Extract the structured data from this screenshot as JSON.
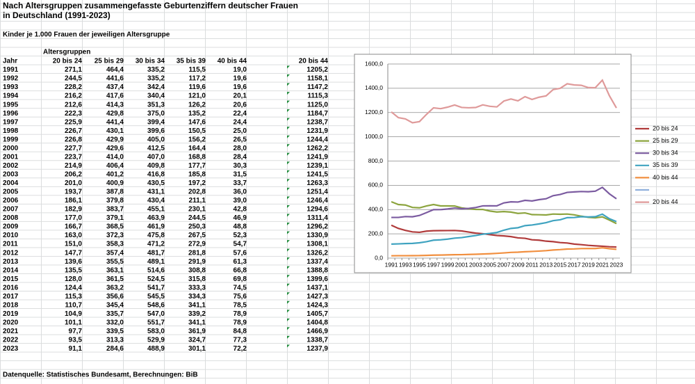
{
  "sheet": {
    "title_line1": "Nach Altersgruppen zusammengefasste Geburtenziffern deutscher Frauen",
    "title_line2": "in Deutschland (1991-2023)",
    "subtitle": "Kinder je 1.000 Frauen der jeweiligen Altersgruppe",
    "group_header": "Altersgruppen",
    "source": "Datenquelle: Statistisches Bundesamt, Berechnungen: BiB",
    "table": {
      "header": [
        "Jahr",
        "20 bis 24",
        "25 bis 29",
        "30 bis 34",
        "35 bis 39",
        "40 bis 44",
        "20 bis 44"
      ],
      "rows": [
        [
          "1991",
          "271,1",
          "464,4",
          "335,2",
          "115,5",
          "19,0",
          "1205,2"
        ],
        [
          "1992",
          "244,5",
          "441,6",
          "335,2",
          "117,2",
          "19,6",
          "1158,1"
        ],
        [
          "1993",
          "228,2",
          "437,4",
          "342,4",
          "119,6",
          "19,6",
          "1147,2"
        ],
        [
          "1994",
          "216,2",
          "417,6",
          "340,4",
          "121,0",
          "20,1",
          "1115,3"
        ],
        [
          "1995",
          "212,6",
          "414,3",
          "351,3",
          "126,2",
          "20,6",
          "1125,0"
        ],
        [
          "1996",
          "222,3",
          "429,8",
          "375,0",
          "135,2",
          "22,4",
          "1184,7"
        ],
        [
          "1997",
          "225,9",
          "441,4",
          "399,4",
          "147,6",
          "24,4",
          "1238,7"
        ],
        [
          "1998",
          "226,7",
          "430,1",
          "399,6",
          "150,5",
          "25,0",
          "1231,9"
        ],
        [
          "1999",
          "226,8",
          "429,9",
          "405,0",
          "156,2",
          "26,5",
          "1244,4"
        ],
        [
          "2000",
          "227,7",
          "429,6",
          "412,5",
          "164,4",
          "28,0",
          "1262,2"
        ],
        [
          "2001",
          "223,7",
          "414,0",
          "407,0",
          "168,8",
          "28,4",
          "1241,9"
        ],
        [
          "2002",
          "214,9",
          "406,4",
          "409,8",
          "177,7",
          "30,3",
          "1239,1"
        ],
        [
          "2003",
          "206,2",
          "401,2",
          "416,8",
          "185,8",
          "31,5",
          "1241,5"
        ],
        [
          "2004",
          "201,0",
          "400,9",
          "430,5",
          "197,2",
          "33,7",
          "1263,3"
        ],
        [
          "2005",
          "193,7",
          "387,8",
          "431,1",
          "202,8",
          "36,0",
          "1251,4"
        ],
        [
          "2006",
          "186,1",
          "379,8",
          "430,4",
          "211,1",
          "39,0",
          "1246,4"
        ],
        [
          "2007",
          "182,9",
          "383,7",
          "455,1",
          "230,1",
          "42,8",
          "1294,6"
        ],
        [
          "2008",
          "177,0",
          "379,1",
          "463,9",
          "244,5",
          "46,9",
          "1311,4"
        ],
        [
          "2009",
          "166,7",
          "368,5",
          "461,9",
          "250,3",
          "48,8",
          "1296,2"
        ],
        [
          "2010",
          "163,0",
          "372,3",
          "475,8",
          "267,5",
          "52,3",
          "1330,9"
        ],
        [
          "2011",
          "151,0",
          "358,3",
          "471,2",
          "272,9",
          "54,7",
          "1308,1"
        ],
        [
          "2012",
          "147,7",
          "357,4",
          "481,7",
          "281,8",
          "57,6",
          "1326,2"
        ],
        [
          "2013",
          "139,6",
          "355,5",
          "489,1",
          "291,9",
          "61,3",
          "1337,4"
        ],
        [
          "2014",
          "135,5",
          "363,1",
          "514,6",
          "308,8",
          "66,8",
          "1388,8"
        ],
        [
          "2015",
          "128,0",
          "361,5",
          "524,5",
          "315,8",
          "69,8",
          "1399,6"
        ],
        [
          "2016",
          "124,4",
          "363,2",
          "541,7",
          "333,3",
          "74,5",
          "1437,1"
        ],
        [
          "2017",
          "115,3",
          "356,6",
          "545,5",
          "334,3",
          "75,6",
          "1427,3"
        ],
        [
          "2018",
          "110,7",
          "345,4",
          "548,6",
          "341,1",
          "78,5",
          "1424,3"
        ],
        [
          "2019",
          "104,9",
          "335,7",
          "547,0",
          "339,2",
          "78,9",
          "1405,7"
        ],
        [
          "2020",
          "101,1",
          "332,0",
          "551,7",
          "341,1",
          "78,9",
          "1404,8"
        ],
        [
          "2021",
          "97,7",
          "339,5",
          "583,0",
          "361,9",
          "84,8",
          "1466,9"
        ],
        [
          "2022",
          "93,5",
          "313,3",
          "529,9",
          "324,7",
          "77,3",
          "1338,7"
        ],
        [
          "2023",
          "91,1",
          "284,6",
          "488,9",
          "301,1",
          "72,2",
          "1237,9"
        ]
      ]
    }
  },
  "chart_data": {
    "type": "line",
    "categories": [
      "1991",
      null,
      "1993",
      null,
      "1995",
      null,
      "1997",
      null,
      "1999",
      null,
      "2001",
      null,
      "2003",
      null,
      "2005",
      null,
      "2007",
      null,
      "2009",
      null,
      "2011",
      null,
      "2013",
      null,
      "2015",
      null,
      "2017",
      null,
      "2019",
      null,
      "2021",
      null,
      "2023"
    ],
    "ylim": [
      0,
      1600
    ],
    "yticks": [
      {
        "value": 0,
        "label": "0,0"
      },
      {
        "value": 200,
        "label": "200,0"
      },
      {
        "value": 400,
        "label": "400,0"
      },
      {
        "value": 600,
        "label": "600,0"
      },
      {
        "value": 800,
        "label": "800,0"
      },
      {
        "value": 1000,
        "label": "1000,0"
      },
      {
        "value": 1200,
        "label": "1200,0"
      },
      {
        "value": 1400,
        "label": "1400,0"
      },
      {
        "value": 1600,
        "label": "1600,0"
      }
    ],
    "grid": true,
    "legend": "right",
    "series": [
      {
        "name": "20 bis 24",
        "color": "#b03a3a",
        "values": [
          271.1,
          244.5,
          228.2,
          216.2,
          212.6,
          222.3,
          225.9,
          226.7,
          226.8,
          227.7,
          223.7,
          214.9,
          206.2,
          201.0,
          193.7,
          186.1,
          182.9,
          177.0,
          166.7,
          163.0,
          151.0,
          147.7,
          139.6,
          135.5,
          128.0,
          124.4,
          115.3,
          110.7,
          104.9,
          101.1,
          97.7,
          93.5,
          91.1
        ]
      },
      {
        "name": "25 bis 29",
        "color": "#8ca43e",
        "values": [
          464.4,
          441.6,
          437.4,
          417.6,
          414.3,
          429.8,
          441.4,
          430.1,
          429.9,
          429.6,
          414.0,
          406.4,
          401.2,
          400.9,
          387.8,
          379.8,
          383.7,
          379.1,
          368.5,
          372.3,
          358.3,
          357.4,
          355.5,
          363.1,
          361.5,
          363.2,
          356.6,
          345.4,
          335.7,
          332.0,
          339.5,
          313.3,
          284.6
        ]
      },
      {
        "name": "30 bis 34",
        "color": "#7b5ba0",
        "values": [
          335.2,
          335.2,
          342.4,
          340.4,
          351.3,
          375.0,
          399.4,
          399.6,
          405.0,
          412.5,
          407.0,
          409.8,
          416.8,
          430.5,
          431.1,
          430.4,
          455.1,
          463.9,
          461.9,
          475.8,
          471.2,
          481.7,
          489.1,
          514.6,
          524.5,
          541.7,
          545.5,
          548.6,
          547.0,
          551.7,
          583.0,
          529.9,
          488.9
        ]
      },
      {
        "name": "35 bis 39",
        "color": "#3fa3c0",
        "values": [
          115.5,
          117.2,
          119.6,
          121.0,
          126.2,
          135.2,
          147.6,
          150.5,
          156.2,
          164.4,
          168.8,
          177.7,
          185.8,
          197.2,
          202.8,
          211.1,
          230.1,
          244.5,
          250.3,
          267.5,
          272.9,
          281.8,
          291.9,
          308.8,
          315.8,
          333.3,
          334.3,
          341.1,
          339.2,
          341.1,
          361.9,
          324.7,
          301.1
        ]
      },
      {
        "name": "40 bis 44",
        "color": "#f18f3f",
        "values": [
          19.0,
          19.6,
          19.6,
          20.1,
          20.6,
          22.4,
          24.4,
          25.0,
          26.5,
          28.0,
          28.4,
          30.3,
          31.5,
          33.7,
          36.0,
          39.0,
          42.8,
          46.9,
          48.8,
          52.3,
          54.7,
          57.6,
          61.3,
          66.8,
          69.8,
          74.5,
          75.6,
          78.5,
          78.9,
          78.9,
          84.8,
          77.3,
          72.2
        ]
      },
      {
        "name": null,
        "color": "#8fb0dc"
      },
      {
        "name": "20 bis 44",
        "color": "#df9a9a",
        "values": [
          1205.2,
          1158.1,
          1147.2,
          1115.3,
          1125.0,
          1184.7,
          1238.7,
          1231.9,
          1244.4,
          1262.2,
          1241.9,
          1239.1,
          1241.5,
          1263.3,
          1251.4,
          1246.4,
          1294.6,
          1311.4,
          1296.2,
          1330.9,
          1308.1,
          1326.2,
          1337.4,
          1388.8,
          1399.6,
          1437.1,
          1427.3,
          1424.3,
          1405.7,
          1404.8,
          1466.9,
          1338.7,
          1237.9
        ]
      }
    ]
  }
}
